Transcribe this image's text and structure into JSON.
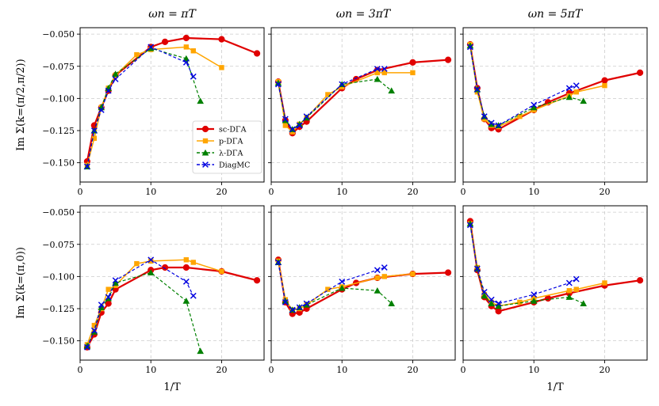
{
  "figure": {
    "column_titles": [
      "ωn = πT",
      "ωn = 3πT",
      "ωn = 5πT"
    ],
    "row_ylabels": [
      "Im Σ(k=(π/2,π/2))",
      "Im Σ(k=(π,0))"
    ],
    "xlabel": "1/T"
  },
  "legend": {
    "placement": "lower-right of top-left panel",
    "entries": [
      {
        "name": "sc-DΓA",
        "color": "#e00000",
        "marker": "circle",
        "style": "solid"
      },
      {
        "name": "p-DΓA",
        "color": "#ffa500",
        "marker": "square",
        "style": "solid"
      },
      {
        "name": "λ-DΓA",
        "color": "#008000",
        "marker": "triangle",
        "style": "dashed"
      },
      {
        "name": "DiagMC",
        "color": "#0000e0",
        "marker": "x",
        "style": "dashed"
      }
    ]
  },
  "chart_data": [
    {
      "type": "line",
      "row": 0,
      "col": 0,
      "title": "ωn = πT",
      "xlim": [
        0,
        26
      ],
      "ylim": [
        -0.165,
        -0.045
      ],
      "grid": true,
      "legend": "lower-right",
      "xticks": [
        0,
        10,
        20
      ],
      "yticks": [
        -0.15,
        -0.125,
        -0.1,
        -0.075,
        -0.05
      ],
      "series": [
        {
          "name": "sc-DΓA",
          "x": [
            1,
            2,
            3,
            4,
            5,
            10,
            12,
            15,
            20,
            25
          ],
          "y": [
            -0.149,
            -0.121,
            -0.107,
            -0.094,
            -0.082,
            -0.06,
            -0.056,
            -0.053,
            -0.054,
            -0.065
          ]
        },
        {
          "name": "p-DΓA",
          "x": [
            1,
            2,
            3,
            4,
            5,
            8,
            10,
            15,
            16,
            20
          ],
          "y": [
            -0.152,
            -0.131,
            -0.107,
            -0.092,
            -0.082,
            -0.066,
            -0.062,
            -0.06,
            -0.063,
            -0.076
          ]
        },
        {
          "name": "λ-DΓA",
          "x": [
            1,
            2,
            3,
            4,
            5,
            10,
            15,
            17
          ],
          "y": [
            -0.153,
            -0.125,
            -0.107,
            -0.092,
            -0.081,
            -0.061,
            -0.069,
            -0.102
          ]
        },
        {
          "name": "DiagMC",
          "x": [
            1,
            2,
            3,
            4,
            5,
            10,
            15,
            16
          ],
          "y": [
            -0.153,
            -0.125,
            -0.109,
            -0.094,
            -0.085,
            -0.06,
            -0.072,
            -0.083
          ]
        }
      ]
    },
    {
      "type": "line",
      "row": 0,
      "col": 1,
      "title": "ωn = 3πT",
      "xlim": [
        0,
        26
      ],
      "ylim": [
        -0.165,
        -0.045
      ],
      "grid": true,
      "xticks": [
        0,
        10,
        20
      ],
      "yticks": [
        -0.15,
        -0.125,
        -0.1,
        -0.075,
        -0.05
      ],
      "series": [
        {
          "name": "sc-DΓA",
          "x": [
            1,
            2,
            3,
            4,
            5,
            10,
            12,
            15,
            20,
            25
          ],
          "y": [
            -0.087,
            -0.117,
            -0.127,
            -0.122,
            -0.118,
            -0.092,
            -0.085,
            -0.078,
            -0.072,
            -0.07
          ]
        },
        {
          "name": "p-DΓA",
          "x": [
            1,
            2,
            3,
            4,
            5,
            8,
            10,
            15,
            16,
            20
          ],
          "y": [
            -0.087,
            -0.121,
            -0.126,
            -0.12,
            -0.115,
            -0.097,
            -0.091,
            -0.08,
            -0.08,
            -0.08
          ]
        },
        {
          "name": "λ-DΓA",
          "x": [
            1,
            2,
            3,
            4,
            5,
            10,
            15,
            17
          ],
          "y": [
            -0.088,
            -0.117,
            -0.124,
            -0.12,
            -0.115,
            -0.089,
            -0.085,
            -0.094
          ]
        },
        {
          "name": "DiagMC",
          "x": [
            1,
            2,
            3,
            4,
            5,
            10,
            15,
            16
          ],
          "y": [
            -0.089,
            -0.116,
            -0.124,
            -0.121,
            -0.114,
            -0.089,
            -0.077,
            -0.077
          ]
        }
      ]
    },
    {
      "type": "line",
      "row": 0,
      "col": 2,
      "title": "ωn = 5πT",
      "xlim": [
        0,
        26
      ],
      "ylim": [
        -0.165,
        -0.045
      ],
      "grid": true,
      "xticks": [
        0,
        10,
        20
      ],
      "yticks": [
        -0.15,
        -0.125,
        -0.1,
        -0.075,
        -0.05
      ],
      "series": [
        {
          "name": "sc-DΓA",
          "x": [
            1,
            2,
            3,
            4,
            5,
            10,
            12,
            15,
            20,
            25
          ],
          "y": [
            -0.058,
            -0.092,
            -0.116,
            -0.123,
            -0.124,
            -0.109,
            -0.103,
            -0.096,
            -0.086,
            -0.08
          ]
        },
        {
          "name": "p-DΓA",
          "x": [
            1,
            2,
            3,
            4,
            5,
            8,
            10,
            15,
            16,
            20
          ],
          "y": [
            -0.058,
            -0.095,
            -0.116,
            -0.121,
            -0.122,
            -0.114,
            -0.109,
            -0.098,
            -0.095,
            -0.09
          ]
        },
        {
          "name": "λ-DΓA",
          "x": [
            1,
            2,
            3,
            4,
            5,
            10,
            15,
            17
          ],
          "y": [
            -0.059,
            -0.093,
            -0.114,
            -0.12,
            -0.121,
            -0.107,
            -0.099,
            -0.102
          ]
        },
        {
          "name": "DiagMC",
          "x": [
            1,
            2,
            3,
            4,
            5,
            10,
            15,
            16
          ],
          "y": [
            -0.06,
            -0.093,
            -0.114,
            -0.119,
            -0.121,
            -0.105,
            -0.092,
            -0.09
          ]
        }
      ]
    },
    {
      "type": "line",
      "row": 1,
      "col": 0,
      "title": "",
      "xlim": [
        0,
        26
      ],
      "ylim": [
        -0.165,
        -0.045
      ],
      "grid": true,
      "xticks": [
        0,
        10,
        20
      ],
      "yticks": [
        -0.15,
        -0.125,
        -0.1,
        -0.075,
        -0.05
      ],
      "series": [
        {
          "name": "sc-DΓA",
          "x": [
            1,
            2,
            3,
            4,
            5,
            10,
            12,
            15,
            20,
            25
          ],
          "y": [
            -0.155,
            -0.145,
            -0.128,
            -0.121,
            -0.11,
            -0.095,
            -0.093,
            -0.093,
            -0.096,
            -0.103
          ]
        },
        {
          "name": "p-DΓA",
          "x": [
            1,
            2,
            3,
            4,
            5,
            8,
            10,
            15,
            16,
            20
          ],
          "y": [
            -0.153,
            -0.138,
            -0.125,
            -0.11,
            -0.107,
            -0.09,
            -0.088,
            -0.087,
            -0.089,
            -0.096
          ]
        },
        {
          "name": "λ-DΓA",
          "x": [
            1,
            2,
            3,
            4,
            5,
            10,
            15,
            17
          ],
          "y": [
            -0.154,
            -0.143,
            -0.124,
            -0.117,
            -0.105,
            -0.097,
            -0.119,
            -0.158
          ]
        },
        {
          "name": "DiagMC",
          "x": [
            1,
            2,
            3,
            4,
            5,
            10,
            15,
            16
          ],
          "y": [
            -0.155,
            -0.142,
            -0.122,
            -0.116,
            -0.103,
            -0.087,
            -0.104,
            -0.115
          ]
        }
      ]
    },
    {
      "type": "line",
      "row": 1,
      "col": 1,
      "title": "",
      "xlim": [
        0,
        26
      ],
      "ylim": [
        -0.165,
        -0.045
      ],
      "grid": true,
      "xticks": [
        0,
        10,
        20
      ],
      "yticks": [
        -0.15,
        -0.125,
        -0.1,
        -0.075,
        -0.05
      ],
      "series": [
        {
          "name": "sc-DΓA",
          "x": [
            1,
            2,
            3,
            4,
            5,
            10,
            12,
            15,
            20,
            25
          ],
          "y": [
            -0.087,
            -0.12,
            -0.129,
            -0.128,
            -0.125,
            -0.11,
            -0.105,
            -0.101,
            -0.098,
            -0.097
          ]
        },
        {
          "name": "p-DΓA",
          "x": [
            1,
            2,
            3,
            4,
            5,
            8,
            10,
            15,
            16,
            20
          ],
          "y": [
            -0.088,
            -0.118,
            -0.126,
            -0.125,
            -0.122,
            -0.11,
            -0.108,
            -0.101,
            -0.1,
            -0.098
          ]
        },
        {
          "name": "λ-DΓA",
          "x": [
            1,
            2,
            3,
            4,
            5,
            10,
            15,
            17
          ],
          "y": [
            -0.089,
            -0.119,
            -0.126,
            -0.124,
            -0.122,
            -0.109,
            -0.111,
            -0.121
          ]
        },
        {
          "name": "DiagMC",
          "x": [
            1,
            2,
            3,
            4,
            5,
            10,
            15,
            16
          ],
          "y": [
            -0.089,
            -0.12,
            -0.126,
            -0.124,
            -0.121,
            -0.104,
            -0.095,
            -0.093
          ]
        }
      ]
    },
    {
      "type": "line",
      "row": 1,
      "col": 2,
      "title": "",
      "xlim": [
        0,
        26
      ],
      "ylim": [
        -0.165,
        -0.045
      ],
      "grid": true,
      "xticks": [
        0,
        10,
        20
      ],
      "yticks": [
        -0.15,
        -0.125,
        -0.1,
        -0.075,
        -0.05
      ],
      "series": [
        {
          "name": "sc-DΓA",
          "x": [
            1,
            2,
            3,
            4,
            5,
            10,
            12,
            15,
            20,
            25
          ],
          "y": [
            -0.057,
            -0.095,
            -0.116,
            -0.123,
            -0.127,
            -0.12,
            -0.117,
            -0.113,
            -0.107,
            -0.103
          ]
        },
        {
          "name": "p-DΓA",
          "x": [
            1,
            2,
            3,
            4,
            5,
            8,
            10,
            15,
            16,
            20
          ],
          "y": [
            -0.059,
            -0.093,
            -0.114,
            -0.12,
            -0.123,
            -0.12,
            -0.117,
            -0.111,
            -0.11,
            -0.105
          ]
        },
        {
          "name": "λ-DΓA",
          "x": [
            1,
            2,
            3,
            4,
            5,
            10,
            15,
            17
          ],
          "y": [
            -0.059,
            -0.094,
            -0.115,
            -0.121,
            -0.123,
            -0.119,
            -0.116,
            -0.121
          ]
        },
        {
          "name": "DiagMC",
          "x": [
            1,
            2,
            3,
            4,
            5,
            10,
            15,
            16
          ],
          "y": [
            -0.06,
            -0.094,
            -0.112,
            -0.118,
            -0.121,
            -0.114,
            -0.105,
            -0.102
          ]
        }
      ]
    }
  ]
}
